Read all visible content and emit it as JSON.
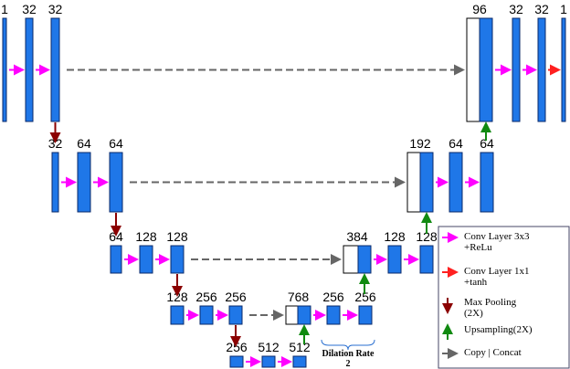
{
  "blocks": [
    "1",
    "32",
    "32",
    "32",
    "64",
    "64",
    "64",
    "128",
    "128",
    "128",
    "256",
    "256",
    "256",
    "512",
    "512",
    "768",
    "256",
    "256",
    "384",
    "128",
    "128",
    "192",
    "64",
    "64",
    "96",
    "32",
    "32",
    "1"
  ],
  "legend": [
    {
      "line1": "Conv Layer 3x3",
      "line2": "+ReLu"
    },
    {
      "line1": "Conv Layer 1x1",
      "line2": "+tanh"
    },
    {
      "line1": "Max Pooling",
      "line2": "(2X)"
    },
    {
      "line1": "Upsampling(2X)"
    },
    {
      "line1": "Copy | Concat"
    }
  ],
  "annotation": {
    "line1": "Dilation Rate",
    "line2": "2"
  }
}
